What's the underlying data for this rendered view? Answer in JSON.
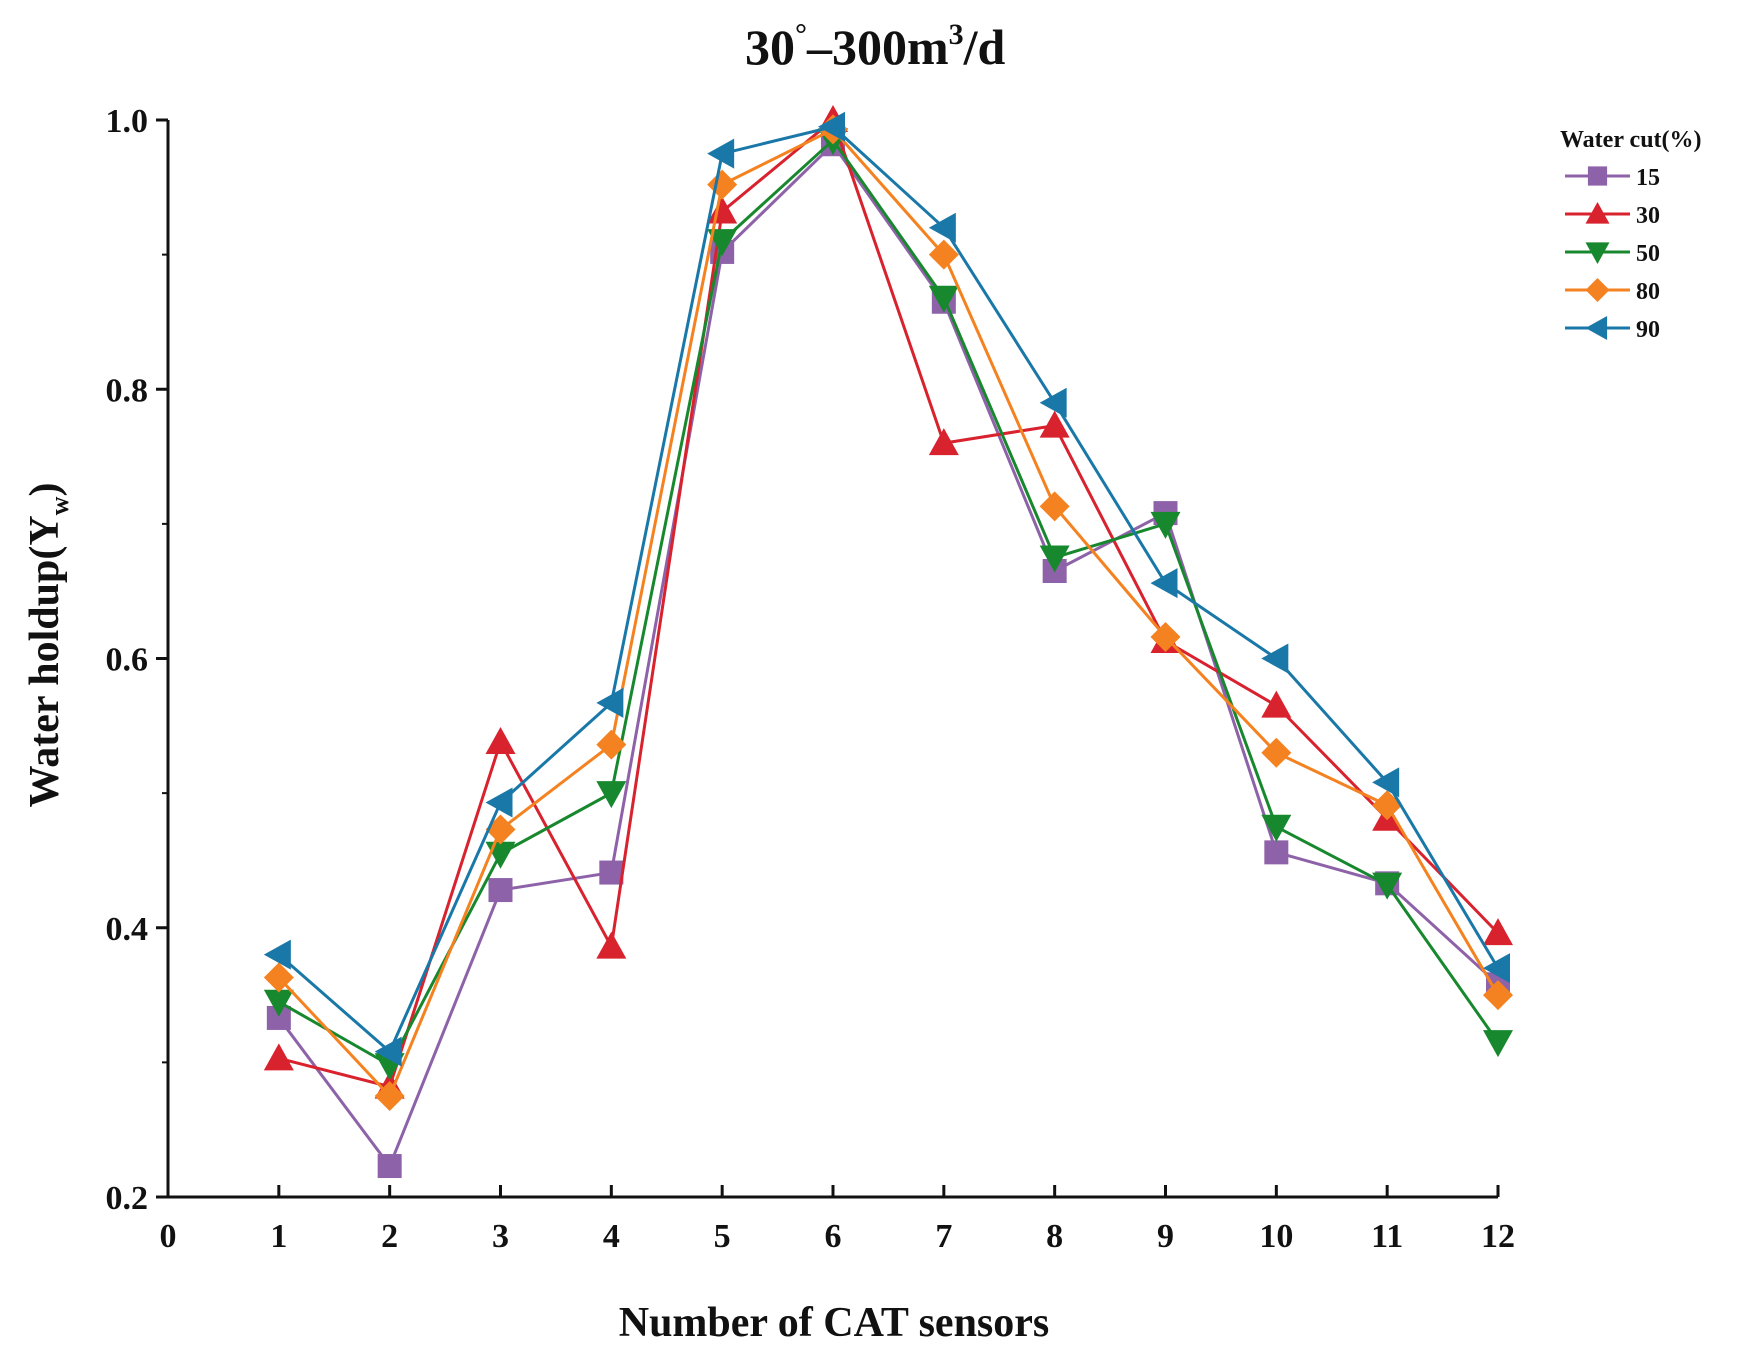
{
  "chart_data": {
    "type": "line",
    "title": {
      "lead": "30",
      "degree": "°",
      "dash": "–",
      "rate": "300m",
      "exponent": "3",
      "unit": "/d"
    },
    "xlabel": "Number of CAT sensors",
    "ylabel": {
      "main": "Water holdup(Y",
      "subscript": "w",
      "close": ")"
    },
    "xlim": [
      0,
      12
    ],
    "ylim": [
      0.2,
      1.0
    ],
    "xticks": [
      0,
      1,
      2,
      3,
      4,
      5,
      6,
      7,
      8,
      9,
      10,
      11,
      12
    ],
    "yticks": [
      0.2,
      0.4,
      0.6,
      0.8,
      1.0
    ],
    "ytick_labels": [
      "0.2",
      "0.4",
      "0.6",
      "0.8",
      "1.0"
    ],
    "grid": false,
    "legend_title": "Water cut(%)",
    "legend_position": "top-right",
    "x": [
      1,
      2,
      3,
      4,
      5,
      6,
      7,
      8,
      9,
      10,
      11,
      12
    ],
    "series": [
      {
        "name": "15",
        "marker": "square",
        "color": "#8e62a8",
        "values": [
          0.333,
          0.223,
          0.428,
          0.441,
          0.902,
          0.982,
          0.865,
          0.665,
          0.708,
          0.456,
          0.433,
          0.358
        ]
      },
      {
        "name": "30",
        "marker": "triangle-up",
        "color": "#d8222e",
        "values": [
          0.303,
          0.282,
          0.538,
          0.386,
          0.932,
          1.0,
          0.76,
          0.773,
          0.613,
          0.565,
          0.481,
          0.396
        ]
      },
      {
        "name": "50",
        "marker": "triangle-down",
        "color": "#18882e",
        "values": [
          0.345,
          0.298,
          0.455,
          0.5,
          0.91,
          0.985,
          0.868,
          0.675,
          0.7,
          0.475,
          0.432,
          0.315
        ]
      },
      {
        "name": "80",
        "marker": "diamond",
        "color": "#f58220",
        "values": [
          0.363,
          0.275,
          0.473,
          0.536,
          0.952,
          0.993,
          0.9,
          0.713,
          0.616,
          0.53,
          0.491,
          0.35
        ]
      },
      {
        "name": "90",
        "marker": "triangle-left",
        "color": "#1a78a8",
        "values": [
          0.38,
          0.308,
          0.493,
          0.567,
          0.975,
          0.995,
          0.92,
          0.79,
          0.656,
          0.6,
          0.508,
          0.37
        ]
      }
    ]
  }
}
